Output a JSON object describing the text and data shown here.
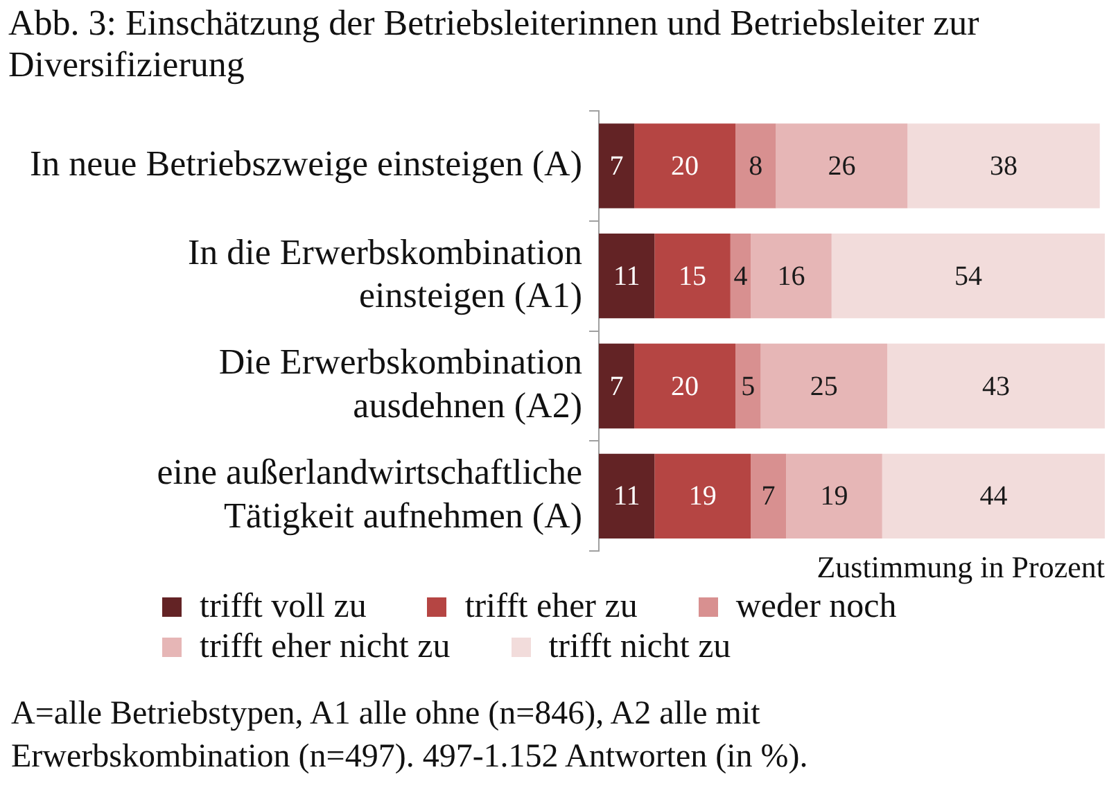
{
  "chart_data": {
    "type": "bar",
    "orientation": "horizontal",
    "stacked": true,
    "title": "Abb. 3: Einschätzung der Betriebsleiterinnen und Betriebsleiter zur Diversifizierung",
    "xlabel": "Zustimmung in Prozent",
    "categories": [
      "In neue Betriebszweige einsteigen (A)",
      "In die Erwerbskombination einsteigen (A1)",
      "Die Erwerbskombination ausdehnen (A2)",
      "eine außerlandwirtschaftliche Tätigkeit aufnehmen (A)"
    ],
    "series": [
      {
        "name": "trifft voll zu",
        "color": "#632325",
        "values": [
          7,
          11,
          7,
          11
        ]
      },
      {
        "name": "trifft eher zu",
        "color": "#b54543",
        "values": [
          20,
          15,
          20,
          19
        ]
      },
      {
        "name": "weder noch",
        "color": "#d89090",
        "values": [
          8,
          4,
          5,
          7
        ]
      },
      {
        "name": "trifft eher nicht zu",
        "color": "#e6b6b6",
        "values": [
          26,
          16,
          25,
          19
        ]
      },
      {
        "name": "trifft nicht zu",
        "color": "#f2dcdb",
        "values": [
          38,
          54,
          43,
          44
        ]
      }
    ],
    "xlim": [
      0,
      100
    ],
    "tick_labels": "y",
    "data_labels": true,
    "legend": "bottom",
    "annotations": [
      "A=alle Betriebstypen, A1 alle ohne (n=846), A2 alle mit Erwerbskombination (n=497). 497-1.152 Antworten (in %)."
    ]
  }
}
